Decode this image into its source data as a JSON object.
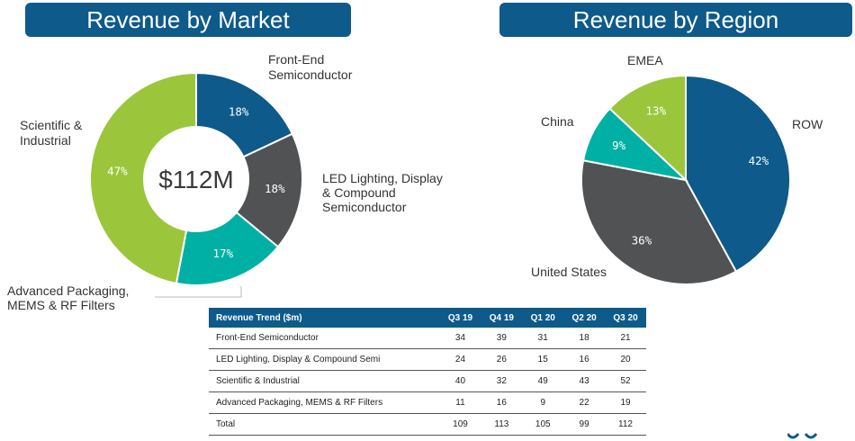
{
  "titles": {
    "market": "Revenue by Market",
    "region": "Revenue by Region"
  },
  "chart_data": [
    {
      "type": "pie",
      "variant": "donut",
      "title": "Revenue by Market",
      "center_label": "$112M",
      "categories": [
        "Front-End Semiconductor",
        "LED Lighting, Display & Compound Semiconductor",
        "Advanced Packaging, MEMS & RF Filters",
        "Scientific & Industrial"
      ],
      "label_lines": [
        [
          "Front-End",
          "Semiconductor"
        ],
        [
          "LED Lighting, Display",
          "& Compound",
          "Semiconductor"
        ],
        [
          "Advanced Packaging,",
          "MEMS & RF Filters"
        ],
        [
          "Scientific &",
          "Industrial"
        ]
      ],
      "values": [
        18,
        18,
        17,
        47
      ],
      "value_labels": [
        "18%",
        "18%",
        "17%",
        "47%"
      ],
      "colors": [
        "#0e5a8a",
        "#505254",
        "#00b0a4",
        "#9bc63b"
      ]
    },
    {
      "type": "pie",
      "title": "Revenue by Region",
      "categories": [
        "ROW",
        "United States",
        "China",
        "EMEA"
      ],
      "values": [
        42,
        36,
        9,
        13
      ],
      "value_labels": [
        "42%",
        "36%",
        "9%",
        "13%"
      ],
      "colors": [
        "#0e5a8a",
        "#505254",
        "#00b0a4",
        "#9bc63b"
      ]
    },
    {
      "type": "table",
      "columns": [
        "Revenue Trend ($m)",
        "Q3 19",
        "Q4 19",
        "Q1 20",
        "Q2 20",
        "Q3 20"
      ],
      "rows": [
        [
          "Front-End Semiconductor",
          "34",
          "39",
          "31",
          "18",
          "21"
        ],
        [
          "LED Lighting, Display & Compound Semi",
          "24",
          "26",
          "15",
          "16",
          "20"
        ],
        [
          "Scientific & Industrial",
          "40",
          "32",
          "49",
          "43",
          "52"
        ],
        [
          "Advanced Packaging, MEMS & RF Filters",
          "11",
          "16",
          "9",
          "22",
          "19"
        ],
        [
          "Total",
          "109",
          "113",
          "105",
          "99",
          "112"
        ]
      ]
    }
  ]
}
